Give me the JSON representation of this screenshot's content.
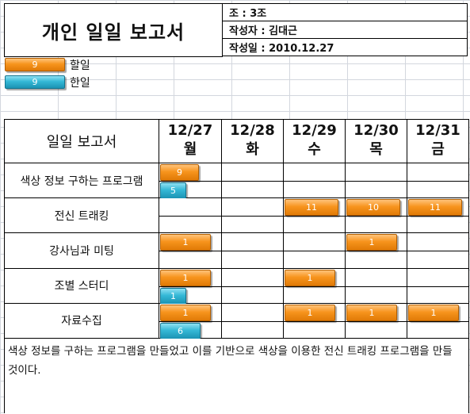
{
  "report": {
    "title": "개인 일일 보고서",
    "team": "조 : 3조",
    "author": "작성자 : 김대근",
    "date": "작성일 :  2010.12.27"
  },
  "legend": [
    {
      "value": "9",
      "label": "할일",
      "color": "#f7941d"
    },
    {
      "value": "9",
      "label": "한일",
      "color": "#34b8d6"
    }
  ],
  "table": {
    "header_label": "일일 보고서",
    "days": [
      {
        "date": "12/27",
        "weekday": "월"
      },
      {
        "date": "12/28",
        "weekday": "화"
      },
      {
        "date": "12/29",
        "weekday": "수"
      },
      {
        "date": "12/30",
        "weekday": "목"
      },
      {
        "date": "12/31",
        "weekday": "금"
      }
    ],
    "tasks": [
      {
        "name": "색상 정보 구하는 프로그램",
        "planned": [
          {
            "day": 0,
            "value": "9"
          }
        ],
        "done": [
          {
            "day": 0,
            "value": "5"
          }
        ]
      },
      {
        "name": "전신 트래킹",
        "planned": [
          {
            "day": 2,
            "value": "11"
          },
          {
            "day": 3,
            "value": "10"
          },
          {
            "day": 4,
            "value": "11"
          }
        ],
        "done": []
      },
      {
        "name": "강사님과 미팅",
        "planned": [
          {
            "day": 0,
            "value": "1"
          },
          {
            "day": 3,
            "value": "1"
          }
        ],
        "done": []
      },
      {
        "name": "조별 스터디",
        "planned": [
          {
            "day": 0,
            "value": "1"
          },
          {
            "day": 2,
            "value": "1"
          }
        ],
        "done": [
          {
            "day": 0,
            "value": "1"
          }
        ]
      },
      {
        "name": "자료수집",
        "planned": [
          {
            "day": 0,
            "value": "1"
          },
          {
            "day": 2,
            "value": "1"
          },
          {
            "day": 3,
            "value": "1"
          },
          {
            "day": 4,
            "value": "1"
          }
        ],
        "done": [
          {
            "day": 0,
            "value": "6"
          }
        ]
      }
    ]
  },
  "summary": "색상 정보를 구하는 프로그램을 만들었고 이를 기반으로 색상을 이용한 전신 트래킹 프로그램을 만들 것이다."
}
